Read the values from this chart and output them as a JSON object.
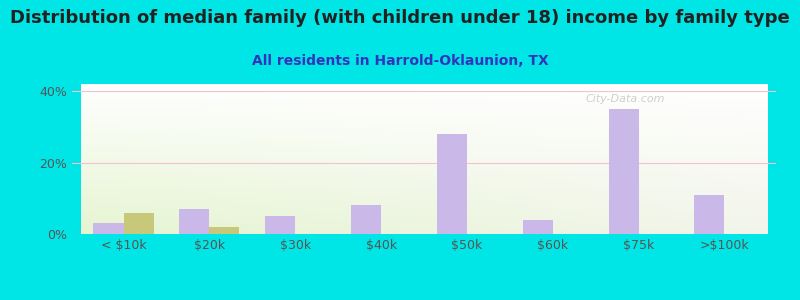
{
  "title": "Distribution of median family (with children under 18) income by family type",
  "subtitle": "All residents in Harrold-Oklaunion, TX",
  "categories": [
    "< $10k",
    "$20k",
    "$30k",
    "$40k",
    "$50k",
    "$60k",
    "$75k",
    ">$100k"
  ],
  "married_couple": [
    3.0,
    7.0,
    5.0,
    8.0,
    28.0,
    4.0,
    35.0,
    11.0
  ],
  "female_no_husband": [
    6.0,
    2.0,
    0.0,
    0.0,
    0.0,
    0.0,
    0.0,
    0.0
  ],
  "married_color": "#c9b8e8",
  "female_color": "#c8c87a",
  "background_outer": "#00e5e5",
  "ylim": [
    0,
    42
  ],
  "yticks": [
    0,
    20,
    40
  ],
  "ytick_labels": [
    "0%",
    "20%",
    "40%"
  ],
  "bar_width": 0.35,
  "title_fontsize": 13,
  "subtitle_fontsize": 10,
  "tick_fontsize": 9,
  "legend_fontsize": 9,
  "watermark": "City-Data.com",
  "grid_color": "#f5c0d0",
  "title_color": "#222222",
  "subtitle_color": "#3333bb",
  "tick_color": "#555555"
}
